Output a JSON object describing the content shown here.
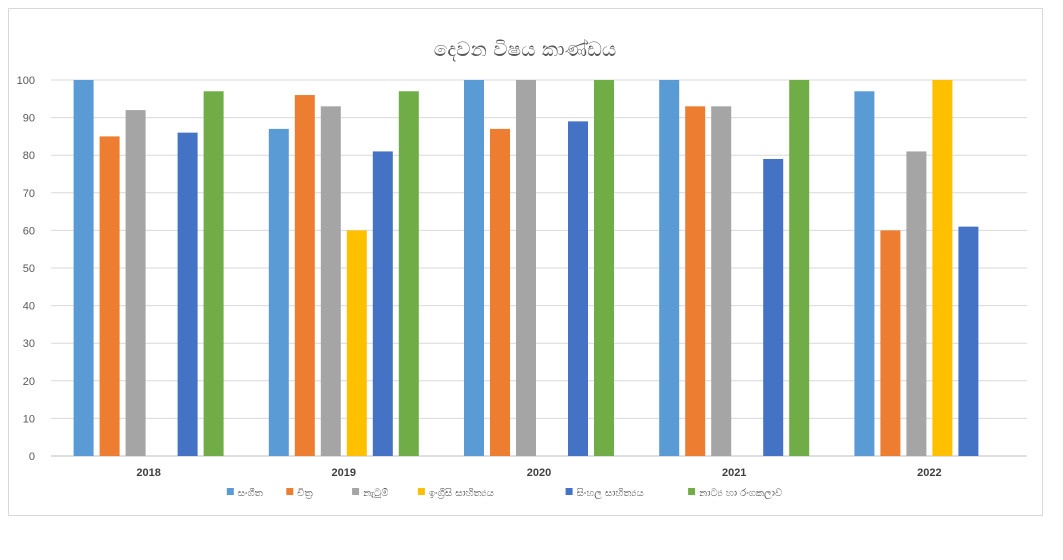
{
  "chart_data": {
    "type": "bar",
    "title": "දෙවන විෂය කාණ්ඩය",
    "categories": [
      "2018",
      "2019",
      "2020",
      "2021",
      "2022"
    ],
    "ylim": [
      0,
      100
    ],
    "yticks": [
      0,
      10,
      20,
      30,
      40,
      50,
      60,
      70,
      80,
      90,
      100
    ],
    "grid": true,
    "legend_position": "bottom",
    "series": [
      {
        "name": "සංගීත",
        "color": "#5b9bd5",
        "values": [
          100,
          87,
          100,
          100,
          97
        ]
      },
      {
        "name": "චිත්‍ර",
        "color": "#ed7d31",
        "values": [
          85,
          96,
          87,
          93,
          60
        ]
      },
      {
        "name": "නැටුම්",
        "color": "#a5a5a5",
        "values": [
          92,
          93,
          100,
          93,
          81
        ]
      },
      {
        "name": "ඉංග්‍රීසි සාහිත්‍යය",
        "color": "#ffc000",
        "values": [
          null,
          60,
          null,
          null,
          100
        ]
      },
      {
        "name": "සිංහල සාහිත්‍යය",
        "color": "#4472c4",
        "values": [
          86,
          81,
          89,
          79,
          61
        ]
      },
      {
        "name": "නාට්‍ය හා රංගකලාව",
        "color": "#70ad47",
        "values": [
          97,
          97,
          100,
          100,
          null
        ]
      }
    ]
  }
}
